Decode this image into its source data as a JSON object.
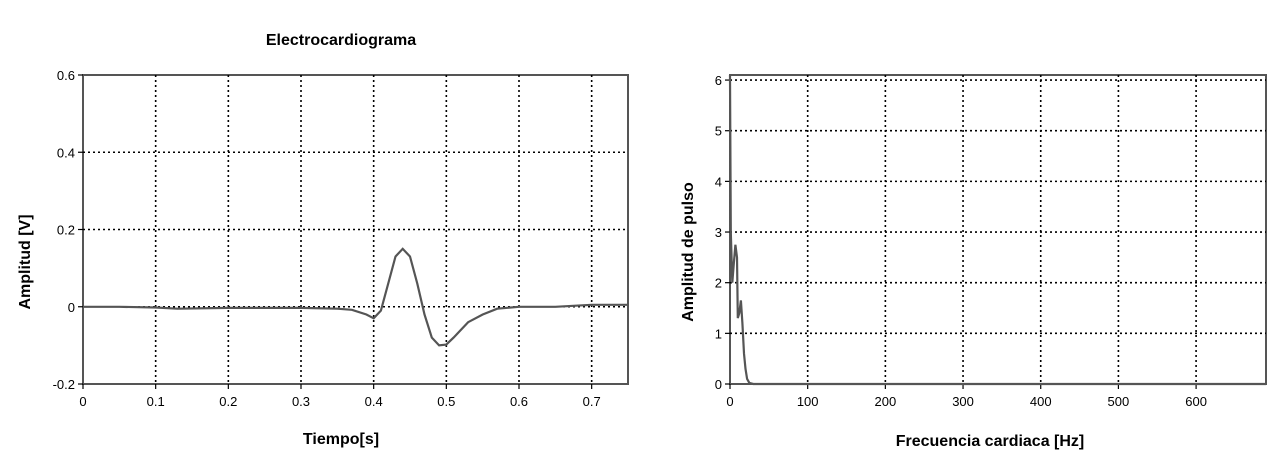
{
  "chart_data": [
    {
      "type": "line",
      "title": "Electrocardiograma",
      "xlabel": "Tiempo[s]",
      "ylabel": "Amplitud [V]",
      "xlim": [
        0,
        0.75
      ],
      "ylim": [
        -0.2,
        0.6
      ],
      "xticks": [
        "0",
        "0.1",
        "0.2",
        "0.3",
        "0.4",
        "0.5",
        "0.6",
        "0.7"
      ],
      "yticks": [
        "-0.2",
        "0",
        "0.2",
        "0.4",
        "0.6"
      ],
      "grid": true,
      "series": [
        {
          "x": [
            0,
            0.05,
            0.1,
            0.13,
            0.2,
            0.25,
            0.3,
            0.35,
            0.37,
            0.39,
            0.4,
            0.41,
            0.42,
            0.43,
            0.44,
            0.45,
            0.46,
            0.47,
            0.48,
            0.49,
            0.5,
            0.51,
            0.52,
            0.53,
            0.55,
            0.57,
            0.6,
            0.65,
            0.7,
            0.75
          ],
          "y": [
            0,
            0,
            -0.002,
            -0.005,
            -0.003,
            -0.003,
            -0.003,
            -0.005,
            -0.008,
            -0.02,
            -0.03,
            -0.01,
            0.06,
            0.13,
            0.15,
            0.13,
            0.06,
            -0.02,
            -0.08,
            -0.1,
            -0.098,
            -0.08,
            -0.06,
            -0.04,
            -0.02,
            -0.005,
            0,
            0,
            0.005,
            0.005
          ]
        }
      ],
      "line_color": "#555555"
    },
    {
      "type": "line",
      "title": "",
      "xlabel": "Frecuencia cardiaca [Hz]",
      "ylabel": "Amplitud de pulso",
      "xlim": [
        0,
        690
      ],
      "ylim": [
        0,
        6.1
      ],
      "xticks": [
        "0",
        "100",
        "200",
        "300",
        "400",
        "500",
        "600"
      ],
      "yticks": [
        "0",
        "1",
        "2",
        "3",
        "4",
        "5",
        "6"
      ],
      "grid": true,
      "series": [
        {
          "x": [
            0,
            1,
            3,
            5,
            7,
            9,
            10,
            12,
            14,
            16,
            18,
            20,
            22,
            25,
            30,
            690
          ],
          "y": [
            6.1,
            3,
            2,
            2.4,
            2.75,
            2.5,
            1.3,
            1.4,
            1.65,
            1.2,
            0.6,
            0.3,
            0.1,
            0.02,
            0,
            0
          ]
        }
      ],
      "line_color": "#555555"
    }
  ]
}
